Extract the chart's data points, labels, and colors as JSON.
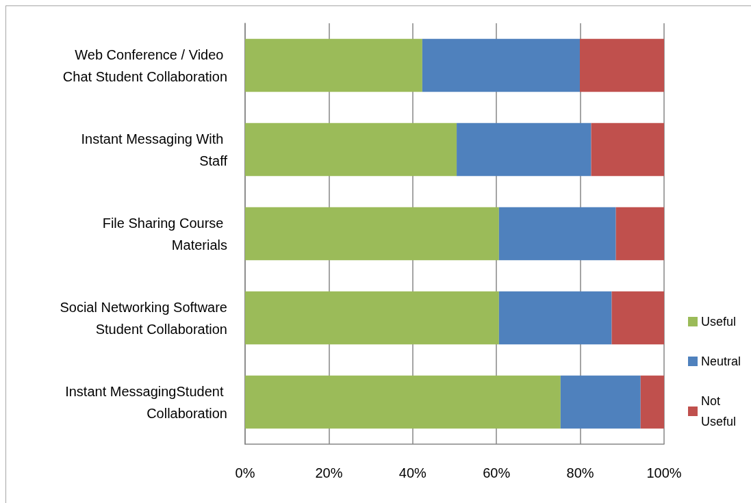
{
  "chart_data": {
    "type": "bar",
    "orientation": "horizontal",
    "stacked": true,
    "categories": [
      "Web Conference / Video Chat Student Collaboration",
      "Instant Messaging With Staff",
      "File Sharing Course Materials",
      "Social Networking Software Student Collaboration",
      "Instant MessagingStudent Collaboration"
    ],
    "series": [
      {
        "name": "Useful",
        "color": "#9bbb59",
        "values": [
          42.3,
          50.5,
          60.6,
          60.6,
          75.3
        ]
      },
      {
        "name": "Neutral",
        "color": "#4f81bd",
        "values": [
          37.6,
          32.1,
          27.9,
          26.9,
          19.1
        ]
      },
      {
        "name": "Not Useful",
        "color": "#c0504d",
        "values": [
          20.1,
          17.4,
          11.5,
          12.5,
          5.6
        ]
      }
    ],
    "xlim": [
      0,
      100
    ],
    "xticks": [
      {
        "value": 0,
        "label": "0%"
      },
      {
        "value": 20,
        "label": "20%"
      },
      {
        "value": 40,
        "label": "40%"
      },
      {
        "value": 60,
        "label": "60%"
      },
      {
        "value": 80,
        "label": "80%"
      },
      {
        "value": 100,
        "label": "100%"
      }
    ],
    "grid": "x",
    "legend": "right"
  }
}
